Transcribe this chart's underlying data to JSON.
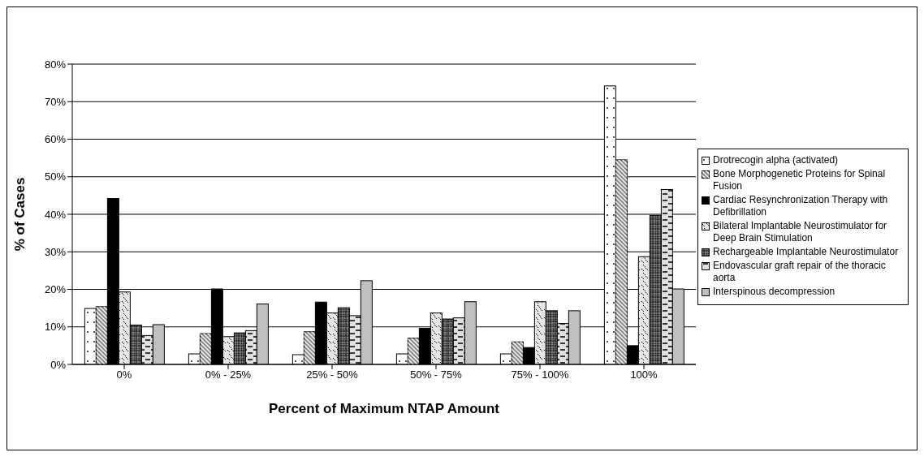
{
  "chart_data": {
    "type": "bar",
    "xlabel": "Percent of Maximum NTAP Amount",
    "ylabel": "% of Cases",
    "categories": [
      "0%",
      "0% - 25%",
      "25% - 50%",
      "50% - 75%",
      "75% - 100%",
      "100%"
    ],
    "series": [
      {
        "name": "Drotrecogin alpha (activated)",
        "color": "#ffffff",
        "values": [
          0.149,
          0.028,
          0.026,
          0.028,
          0.028,
          0.742
        ]
      },
      {
        "name": "Bone Morphogenetic Proteins for Spinal Fusion",
        "color": "#8c8c8c",
        "values": [
          0.154,
          0.082,
          0.087,
          0.07,
          0.06,
          0.545
        ]
      },
      {
        "name": "Cardiac Resynchronization Therapy with Defibrillation",
        "color": "#000000",
        "values": [
          0.442,
          0.201,
          0.166,
          0.096,
          0.045,
          0.05
        ]
      },
      {
        "name": "Bilateral Implantable Neurostimulator for Deep Brain Stimulation",
        "color": "#e6e6e6",
        "values": [
          0.193,
          0.074,
          0.137,
          0.137,
          0.167,
          0.287
        ]
      },
      {
        "name": "Rechargeable Implantable Neurostimulator",
        "color": "#808080",
        "values": [
          0.105,
          0.084,
          0.151,
          0.121,
          0.143,
          0.397
        ]
      },
      {
        "name": "Endovascular graft repair of the thoracic aorta",
        "color": "#e0e0e0",
        "values": [
          0.077,
          0.09,
          0.13,
          0.124,
          0.109,
          0.466
        ]
      },
      {
        "name": "Interspinous decompression",
        "color": "#c0c0c0",
        "values": [
          0.106,
          0.161,
          0.223,
          0.167,
          0.143,
          0.201
        ]
      }
    ],
    "ylim": [
      0,
      0.8
    ],
    "yticks": [
      {
        "value": 0,
        "label": "0%"
      },
      {
        "value": 0.1,
        "label": "10%"
      },
      {
        "value": 0.2,
        "label": "20%"
      },
      {
        "value": 0.3,
        "label": "30%"
      },
      {
        "value": 0.4,
        "label": "40%"
      },
      {
        "value": 0.5,
        "label": "50%"
      },
      {
        "value": 0.6,
        "label": "60%"
      },
      {
        "value": 0.7,
        "label": "70%"
      },
      {
        "value": 0.8,
        "label": "80%"
      }
    ],
    "grid": "y",
    "legend": "right"
  }
}
